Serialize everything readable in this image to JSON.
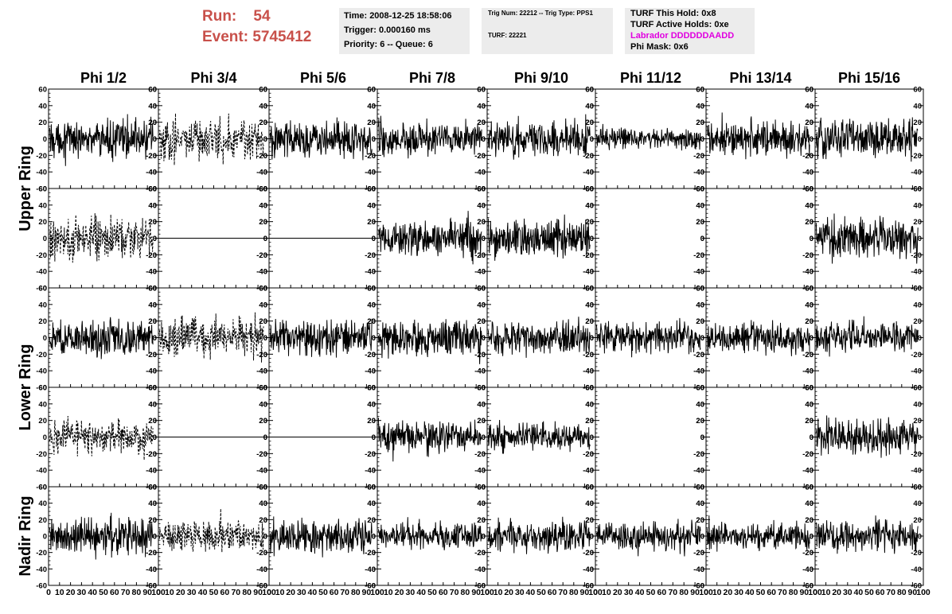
{
  "header": {
    "run_label": "Run:",
    "run_value": "54",
    "event_label": "Event:",
    "event_value": "5745412",
    "time": "Time: 2008-12-25 18:58:06",
    "trigger": "Trigger: 0.000160 ms",
    "priority": "Priority: 6 -- Queue: 6",
    "trig_num": "Trig Num: 22212 -- Trig Type: PPS1",
    "turf": "TURF: 22221",
    "turf_this_hold": "TURF This Hold: 0x8",
    "turf_active_holds": "TURF Active Holds: 0xe",
    "labrador": "Labrador DDDDDDAADD",
    "phi_mask": "Phi Mask: 0x6"
  },
  "colors": {
    "run_text": "#c8504a",
    "info_bg": "#ececec",
    "labrador_text": "#e000e0",
    "trace": "#000000"
  },
  "chart_data": {
    "type": "line",
    "phi_labels": [
      "Phi 1/2",
      "Phi 3/4",
      "Phi 5/6",
      "Phi 7/8",
      "Phi 9/10",
      "Phi 11/12",
      "Phi 13/14",
      "Phi 15/16"
    ],
    "ring_labels": [
      "Upper Ring",
      "Lower Ring",
      "Nadir Ring"
    ],
    "ylim": [
      -60,
      60
    ],
    "xlim": [
      0,
      100
    ],
    "y_ticks": [
      -60,
      -40,
      -20,
      0,
      20,
      40,
      60
    ],
    "x_ticks": [
      0,
      10,
      20,
      30,
      40,
      50,
      60,
      70,
      80,
      90,
      100
    ],
    "panels": [
      [
        {
          "style": "solid",
          "amp": 13
        },
        {
          "style": "dashed",
          "amp": 15
        },
        {
          "style": "solid",
          "amp": 13
        },
        {
          "style": "solid",
          "amp": 13
        },
        {
          "style": "solid",
          "amp": 13
        },
        {
          "style": "solid",
          "amp": 8
        },
        {
          "style": "solid",
          "amp": 13
        },
        {
          "style": "solid",
          "amp": 15
        }
      ],
      [
        {
          "style": "dashed",
          "amp": 15
        },
        {
          "style": "flat",
          "amp": 0
        },
        {
          "style": "flat",
          "amp": 0
        },
        {
          "style": "solid",
          "amp": 13
        },
        {
          "style": "solid",
          "amp": 13
        },
        {
          "style": "blank",
          "amp": 0
        },
        {
          "style": "blank",
          "amp": 0
        },
        {
          "style": "solid",
          "amp": 14
        }
      ],
      [
        {
          "style": "solid",
          "amp": 13
        },
        {
          "style": "dashed",
          "amp": 14
        },
        {
          "style": "solid",
          "amp": 12
        },
        {
          "style": "solid",
          "amp": 13
        },
        {
          "style": "solid",
          "amp": 12
        },
        {
          "style": "solid",
          "amp": 12
        },
        {
          "style": "solid",
          "amp": 11
        },
        {
          "style": "solid",
          "amp": 11
        }
      ],
      [
        {
          "style": "dashed",
          "amp": 12
        },
        {
          "style": "flat",
          "amp": 0
        },
        {
          "style": "flat",
          "amp": 0
        },
        {
          "style": "solid",
          "amp": 12
        },
        {
          "style": "solid",
          "amp": 10
        },
        {
          "style": "blank",
          "amp": 0
        },
        {
          "style": "blank",
          "amp": 0
        },
        {
          "style": "solid",
          "amp": 13
        }
      ],
      [
        {
          "style": "solid",
          "amp": 14
        },
        {
          "style": "dashed",
          "amp": 11
        },
        {
          "style": "solid",
          "amp": 12
        },
        {
          "style": "solid",
          "amp": 10
        },
        {
          "style": "solid",
          "amp": 12
        },
        {
          "style": "solid",
          "amp": 11
        },
        {
          "style": "solid",
          "amp": 10
        },
        {
          "style": "solid",
          "amp": 11
        }
      ]
    ]
  }
}
